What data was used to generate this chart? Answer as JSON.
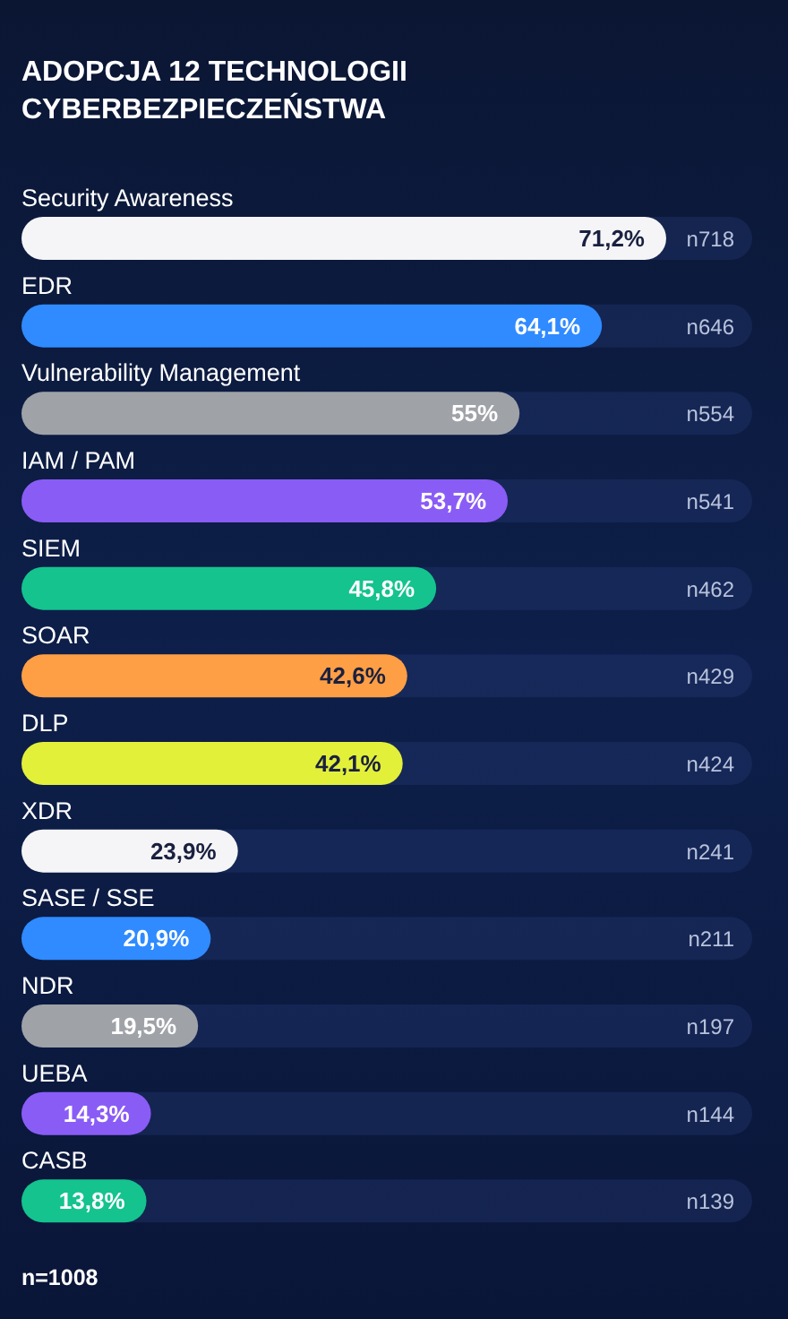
{
  "chart_data": {
    "type": "bar",
    "orientation": "horizontal",
    "title": "ADOPCJA 12 TECHNOLOGII\nCYBERBEZPIECZEŃSTWA",
    "categories": [
      "Security Awareness",
      "EDR",
      "Vulnerability Management",
      "IAM / PAM",
      "SIEM",
      "SOAR",
      "DLP",
      "XDR",
      "SASE / SSE",
      "NDR",
      "UEBA",
      "CASB"
    ],
    "values": [
      71.2,
      64.1,
      55,
      53.7,
      45.8,
      42.6,
      42.1,
      23.9,
      20.9,
      19.5,
      14.3,
      13.8
    ],
    "value_labels": [
      "71,2%",
      "64,1%",
      "55%",
      "53,7%",
      "45,8%",
      "42,6%",
      "42,1%",
      "23,9%",
      "20,9%",
      "19,5%",
      "14,3%",
      "13,8%"
    ],
    "colors": [
      "#f5f5f7",
      "#2f8bff",
      "#9fa3a8",
      "#8a5cf6",
      "#14c38e",
      "#ff9f45",
      "#e2f03a",
      "#f5f5f7",
      "#2f8bff",
      "#9fa3a8",
      "#8a5cf6",
      "#14c38e"
    ],
    "annotations": [
      "n718",
      "n646",
      "n554",
      "n541",
      "n462",
      "n429",
      "n424",
      "n241",
      "n211",
      "n197",
      "n144",
      "n139",
      "n=1008"
    ],
    "grid": false,
    "legend": false
  }
}
